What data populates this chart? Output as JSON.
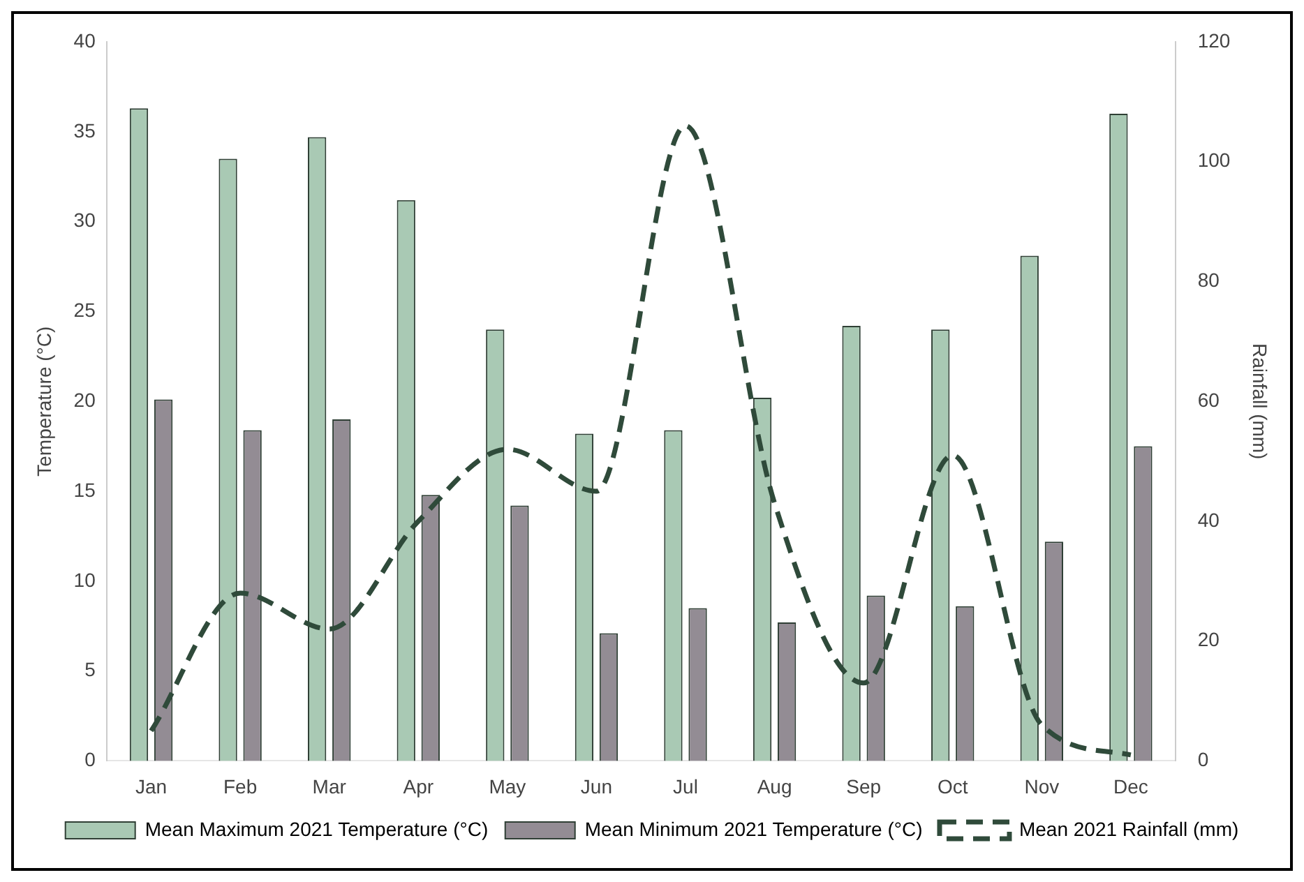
{
  "chart_data": {
    "type": "bar",
    "categories": [
      "Jan",
      "Feb",
      "Mar",
      "Apr",
      "May",
      "Jun",
      "Jul",
      "Aug",
      "Sep",
      "Oct",
      "Nov",
      "Dec"
    ],
    "series": [
      {
        "name": "Mean Maximum 2021 Temperature (°C)",
        "color": "#a9c9b4",
        "values": [
          36.3,
          33.5,
          34.7,
          31.2,
          24,
          18.2,
          18.4,
          20.2,
          24.2,
          24,
          28.1,
          36
        ]
      },
      {
        "name": "Mean Minimum 2021 Temperature (°C)",
        "color": "#938c94",
        "values": [
          20.1,
          18.4,
          19,
          14.8,
          14.2,
          7.1,
          8.5,
          7.7,
          9.2,
          8.6,
          12.2,
          17.5
        ]
      },
      {
        "name": "Mean 2021 Rainfall (mm)",
        "type": "line",
        "axis": "y2",
        "color": "#2f4a3a",
        "line_style": "dashed",
        "values": [
          5,
          28,
          22,
          40,
          52,
          45,
          106,
          43,
          13,
          51,
          6,
          1
        ]
      }
    ],
    "ylabel": "Temperature (°C)",
    "y2label": "Rainfall (mm)",
    "ylim": [
      0,
      40
    ],
    "yticks": [
      0,
      5,
      10,
      15,
      20,
      25,
      30,
      35,
      40
    ],
    "y2lim": [
      0,
      120
    ],
    "y2ticks": [
      0,
      20,
      40,
      60,
      80,
      100,
      120
    ],
    "grid": false,
    "legend": "bottom",
    "marker": "none"
  }
}
